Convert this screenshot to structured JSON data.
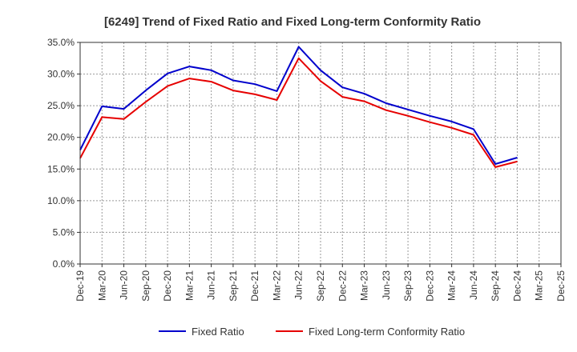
{
  "chart_data": {
    "type": "line",
    "title": "[6249]  Trend of Fixed Ratio and Fixed Long-term Conformity Ratio",
    "xlabel": "",
    "ylabel": "",
    "ylim": [
      0,
      35
    ],
    "y_ticks": [
      "0.0%",
      "5.0%",
      "10.0%",
      "15.0%",
      "20.0%",
      "25.0%",
      "30.0%",
      "35.0%"
    ],
    "categories": [
      "Dec-19",
      "Mar-20",
      "Jun-20",
      "Sep-20",
      "Dec-20",
      "Mar-21",
      "Jun-21",
      "Sep-21",
      "Dec-21",
      "Mar-22",
      "Jun-22",
      "Sep-22",
      "Dec-22",
      "Mar-23",
      "Jun-23",
      "Sep-23",
      "Dec-23",
      "Mar-24",
      "Jun-24",
      "Sep-24",
      "Dec-24",
      "Mar-25",
      "Dec-25"
    ],
    "grid": true,
    "legend_position": "bottom",
    "series": [
      {
        "name": "Fixed Ratio",
        "color": "#0000cc",
        "values": [
          18.0,
          24.9,
          24.5,
          27.4,
          30.1,
          31.2,
          30.6,
          29.0,
          28.4,
          27.3,
          34.3,
          30.6,
          27.9,
          26.9,
          25.4,
          24.4,
          23.4,
          22.5,
          21.3,
          15.8,
          16.8,
          null,
          null
        ]
      },
      {
        "name": "Fixed Long-term Conformity Ratio",
        "color": "#e60000",
        "values": [
          16.7,
          23.2,
          22.9,
          25.6,
          28.1,
          29.3,
          28.8,
          27.4,
          26.8,
          25.9,
          32.5,
          28.9,
          26.4,
          25.7,
          24.3,
          23.4,
          22.4,
          21.5,
          20.4,
          15.3,
          16.2,
          null,
          null
        ]
      }
    ]
  }
}
